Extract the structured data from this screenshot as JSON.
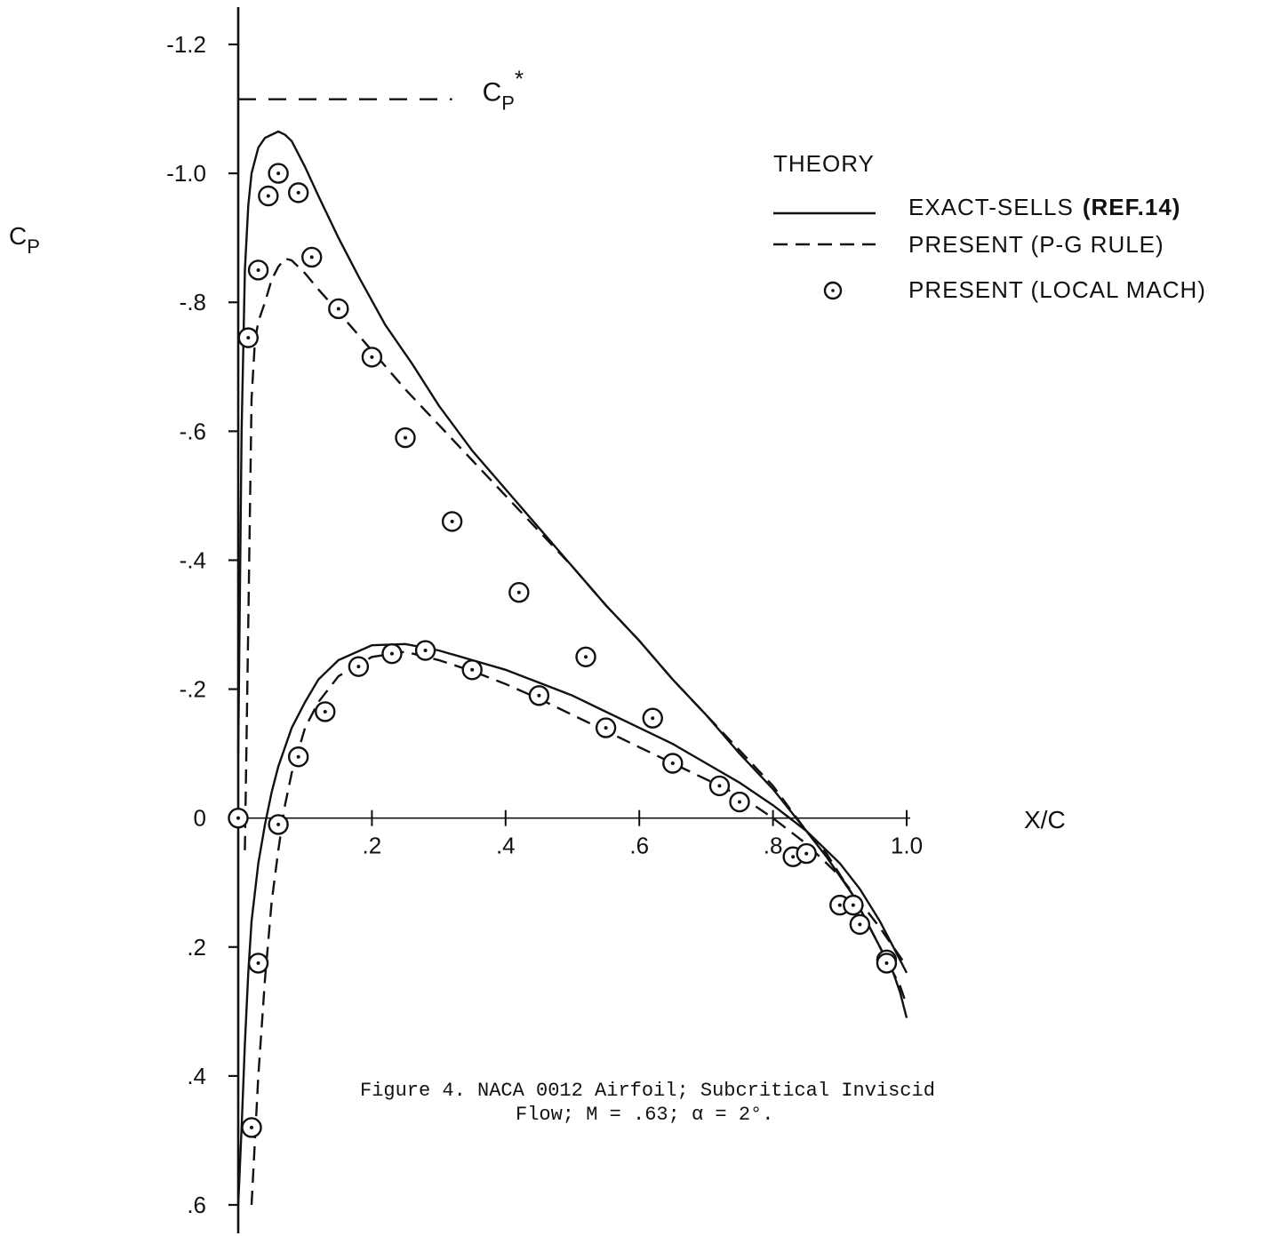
{
  "chart_data": {
    "type": "line",
    "title": "",
    "caption_line1": "Figure 4.  NACA 0012 Airfoil; Subcritical Inviscid",
    "caption_line2": "Flow; M = .63; α = 2°.",
    "xlabel": "X/C",
    "ylabel": "C",
    "ylabel_sub": "P",
    "xlim": [
      0,
      1.0
    ],
    "ylim": [
      -1.2,
      0.6
    ],
    "y_inverted": true,
    "x_ticks": [
      0.2,
      0.4,
      0.6,
      0.8,
      1.0
    ],
    "x_tick_labels": [
      ".2",
      ".4",
      ".6",
      ".8",
      "1.0"
    ],
    "y_ticks": [
      -1.2,
      -1.0,
      -0.8,
      -0.6,
      -0.4,
      -0.2,
      0,
      0.2,
      0.4,
      0.6
    ],
    "y_tick_labels": [
      "-1.2",
      "-1.0",
      "-.8",
      "-.6",
      "-.4",
      "-.2",
      "0",
      ".2",
      ".4",
      ".6"
    ],
    "cp_star": {
      "value": -1.115,
      "label": "C",
      "label_sub": "P",
      "label_sup": "*",
      "x_end": 0.32
    },
    "legend": {
      "heading": "THEORY",
      "placement": "top-right",
      "entries": [
        {
          "name": "EXACT-SELLS",
          "ref": "(REF.14)",
          "style": "solid"
        },
        {
          "name": "PRESENT (P-G RULE)",
          "style": "dashed"
        },
        {
          "name": "PRESENT (LOCAL MACH)",
          "style": "circle-dot"
        }
      ]
    },
    "series": [
      {
        "name": "EXACT-SELLS (REF.14) upper",
        "style": "solid",
        "x": [
          0,
          0.005,
          0.01,
          0.015,
          0.02,
          0.03,
          0.04,
          0.06,
          0.07,
          0.08,
          0.1,
          0.12,
          0.15,
          0.18,
          0.22,
          0.26,
          0.3,
          0.35,
          0.4,
          0.45,
          0.5,
          0.55,
          0.6,
          0.65,
          0.7,
          0.75,
          0.8,
          0.85,
          0.88,
          0.92,
          0.95,
          0.97,
          0.98,
          0.99,
          1.0
        ],
        "y": [
          -0.1,
          -0.6,
          -0.85,
          -0.95,
          -1.0,
          -1.04,
          -1.055,
          -1.065,
          -1.06,
          -1.05,
          -1.01,
          -0.965,
          -0.9,
          -0.84,
          -0.765,
          -0.705,
          -0.64,
          -0.57,
          -0.51,
          -0.45,
          -0.39,
          -0.33,
          -0.275,
          -0.215,
          -0.16,
          -0.1,
          -0.045,
          0.02,
          0.06,
          0.12,
          0.18,
          0.22,
          0.24,
          0.27,
          0.31
        ]
      },
      {
        "name": "EXACT-SELLS (REF.14) lower",
        "style": "solid",
        "x": [
          0,
          0.005,
          0.01,
          0.015,
          0.02,
          0.03,
          0.04,
          0.05,
          0.06,
          0.08,
          0.1,
          0.12,
          0.15,
          0.2,
          0.25,
          0.3,
          0.35,
          0.4,
          0.45,
          0.5,
          0.55,
          0.6,
          0.65,
          0.7,
          0.75,
          0.8,
          0.85,
          0.9,
          0.93,
          0.96,
          0.98,
          1.0
        ],
        "y": [
          0.6,
          0.48,
          0.35,
          0.24,
          0.16,
          0.07,
          0.01,
          -0.04,
          -0.08,
          -0.14,
          -0.18,
          -0.215,
          -0.245,
          -0.268,
          -0.27,
          -0.26,
          -0.245,
          -0.23,
          -0.21,
          -0.19,
          -0.165,
          -0.14,
          -0.115,
          -0.085,
          -0.055,
          -0.02,
          0.02,
          0.07,
          0.11,
          0.16,
          0.2,
          0.24
        ]
      },
      {
        "name": "PRESENT (P-G RULE) upper",
        "style": "dashed",
        "x": [
          0.01,
          0.015,
          0.02,
          0.025,
          0.03,
          0.04,
          0.05,
          0.06,
          0.07,
          0.08,
          0.1,
          0.12,
          0.15,
          0.2,
          0.25,
          0.3,
          0.35,
          0.4,
          0.45,
          0.5,
          0.55,
          0.6,
          0.65,
          0.7,
          0.75,
          0.8,
          0.85,
          0.88,
          0.92,
          0.95,
          0.97,
          0.99,
          1.0
        ],
        "y": [
          0.05,
          -0.3,
          -0.65,
          -0.74,
          -0.77,
          -0.8,
          -0.835,
          -0.855,
          -0.868,
          -0.865,
          -0.845,
          -0.82,
          -0.785,
          -0.725,
          -0.665,
          -0.61,
          -0.555,
          -0.5,
          -0.445,
          -0.39,
          -0.33,
          -0.275,
          -0.215,
          -0.16,
          -0.105,
          -0.05,
          0.02,
          0.055,
          0.12,
          0.18,
          0.22,
          0.26,
          0.29
        ]
      },
      {
        "name": "PRESENT (P-G RULE) lower",
        "style": "dashed",
        "x": [
          0.02,
          0.025,
          0.03,
          0.04,
          0.05,
          0.06,
          0.07,
          0.08,
          0.1,
          0.12,
          0.15,
          0.2,
          0.25,
          0.3,
          0.35,
          0.4,
          0.45,
          0.5,
          0.55,
          0.6,
          0.65,
          0.7,
          0.75,
          0.8,
          0.85,
          0.9,
          0.93,
          0.96,
          0.98,
          1.0
        ],
        "y": [
          0.6,
          0.5,
          0.4,
          0.25,
          0.13,
          0.05,
          -0.02,
          -0.07,
          -0.14,
          -0.18,
          -0.22,
          -0.25,
          -0.258,
          -0.245,
          -0.228,
          -0.208,
          -0.185,
          -0.16,
          -0.135,
          -0.11,
          -0.085,
          -0.06,
          -0.035,
          0.0,
          0.04,
          0.09,
          0.13,
          0.17,
          0.2,
          0.23
        ]
      },
      {
        "name": "PRESENT (LOCAL MACH)",
        "style": "circle-dot",
        "x": [
          0.0,
          0.015,
          0.03,
          0.045,
          0.06,
          0.09,
          0.11,
          0.15,
          0.2,
          0.25,
          0.32,
          0.42,
          0.52,
          0.62,
          0.72,
          0.83,
          0.9,
          0.93,
          0.97,
          0.03,
          0.06,
          0.09,
          0.13,
          0.18,
          0.23,
          0.28,
          0.35,
          0.45,
          0.55,
          0.65,
          0.75,
          0.85,
          0.92,
          0.97,
          0.02
        ],
        "y": [
          0.0,
          -0.745,
          -0.85,
          -0.965,
          -1.0,
          -0.97,
          -0.87,
          -0.79,
          -0.715,
          -0.59,
          -0.46,
          -0.35,
          -0.25,
          -0.155,
          -0.05,
          0.06,
          0.135,
          0.165,
          0.22,
          0.225,
          0.01,
          -0.095,
          -0.165,
          -0.235,
          -0.255,
          -0.26,
          -0.23,
          -0.19,
          -0.14,
          -0.085,
          -0.025,
          0.055,
          0.135,
          0.225,
          0.48
        ]
      }
    ]
  }
}
